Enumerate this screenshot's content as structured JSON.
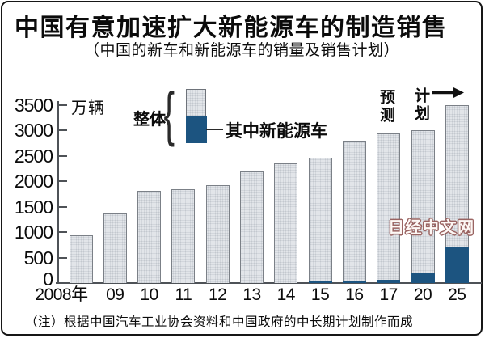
{
  "header": {
    "title": "中国有意加速扩大新能源车的制造销售",
    "subtitle": "（中国的新车和新能源车的销量及销售计划）"
  },
  "chart": {
    "unit_label": "万辆",
    "legend": {
      "overall_label": "整体",
      "brace": "{",
      "nev_label": "其中新能源车"
    },
    "annotations": {
      "forecast_label": "预测",
      "plan_label": "计划"
    },
    "watermark": "日经中文网"
  },
  "chart_data": {
    "type": "bar",
    "stacked": true,
    "title": "中国的新车和新能源车的销量及销售计划",
    "ylabel": "万辆",
    "categories": [
      "2008年",
      "09",
      "10",
      "11",
      "12",
      "13",
      "14",
      "15",
      "16",
      "17",
      "20",
      "25"
    ],
    "series": [
      {
        "name": "整体",
        "color": "#e2e5e9",
        "values": [
          938,
          1364,
          1806,
          1850,
          1931,
          2198,
          2349,
          2460,
          2803,
          2940,
          3000,
          3500
        ]
      },
      {
        "name": "其中新能源车",
        "color": "#1c5480",
        "values": [
          0,
          0,
          0,
          0,
          0,
          0,
          7,
          33,
          51,
          70,
          200,
          700
        ]
      }
    ],
    "ylim": [
      0,
      3500
    ],
    "ytick_step": 500,
    "category_notes": {
      "17": "预测",
      "20": "计划",
      "25": "计划"
    },
    "legend_position": "top"
  },
  "footer": {
    "note": "（注）根据中国汽车工业协会资料和中国政府的中长期计划制作而成"
  },
  "colors": {
    "bar_fill": "#e2e5e9",
    "bar_dot": "#c3c8ce",
    "bar_border": "#7b8087",
    "nev_fill": "#1c5480",
    "axis": "#4e5257",
    "watermark_outline": "#9a6462",
    "text": "#0b0b0b"
  }
}
